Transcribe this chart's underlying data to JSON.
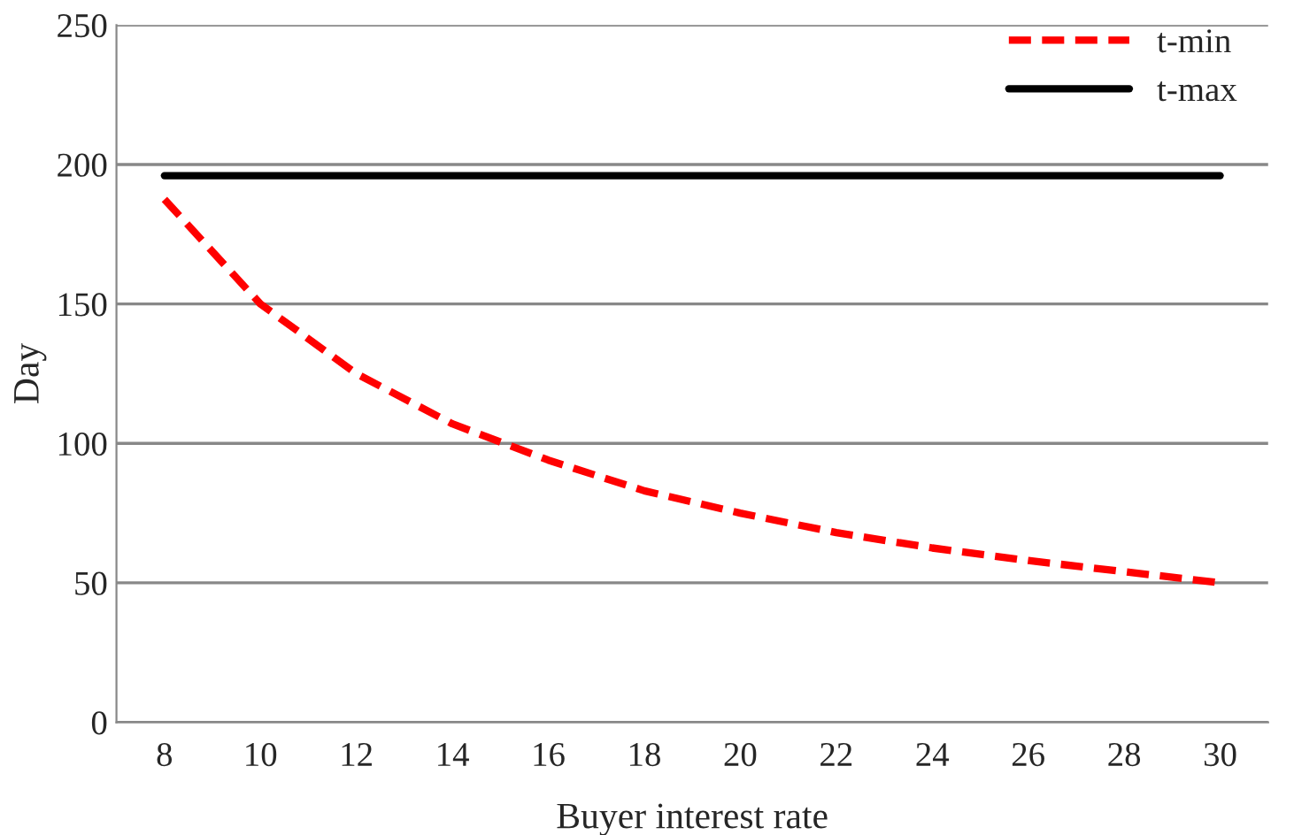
{
  "chart_data": {
    "type": "line",
    "xlabel": "Buyer interest rate",
    "ylabel": "Day",
    "categories": [
      "8",
      "10",
      "12",
      "14",
      "16",
      "18",
      "20",
      "22",
      "24",
      "26",
      "28",
      "30"
    ],
    "series": [
      {
        "name": "t-min",
        "color": "#ff0000",
        "line_style": "dashed",
        "values": [
          187.5,
          150,
          125,
          107,
          94,
          83,
          75,
          68,
          62.5,
          58,
          54,
          50
        ]
      },
      {
        "name": "t-max",
        "color": "#000000",
        "line_style": "solid",
        "values": [
          196,
          196,
          196,
          196,
          196,
          196,
          196,
          196,
          196,
          196,
          196,
          196
        ]
      }
    ],
    "ylim": [
      0,
      250
    ],
    "yticks": [
      0,
      50,
      100,
      150,
      200,
      250
    ],
    "grid": "y",
    "legend": "top right",
    "marker": "none"
  }
}
